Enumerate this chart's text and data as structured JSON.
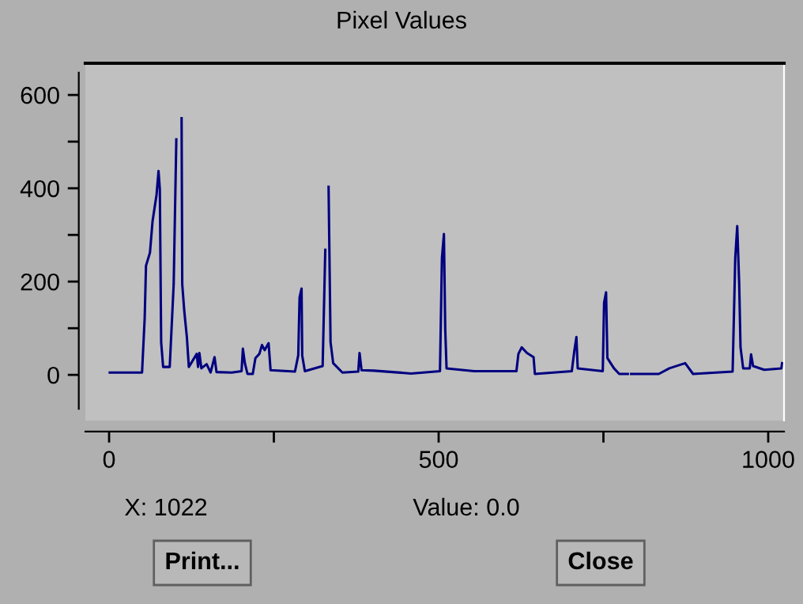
{
  "chart_data": {
    "type": "line",
    "title": "Pixel Values",
    "x": [
      1,
      50,
      54,
      56,
      62,
      66,
      72,
      75,
      77,
      79,
      82,
      92,
      98,
      102,
      104,
      108,
      110,
      111,
      114,
      118,
      121,
      133,
      135,
      137,
      140,
      148,
      154,
      160,
      163,
      186,
      201,
      203,
      206,
      210,
      218,
      222,
      228,
      232,
      236,
      242,
      245,
      282,
      287,
      289,
      292,
      293,
      297,
      324,
      328,
      330,
      332,
      333,
      336,
      340,
      354,
      378,
      380,
      383,
      402,
      458,
      502,
      505,
      508,
      510,
      512,
      554,
      618,
      621,
      626,
      634,
      644,
      646,
      702,
      706,
      709,
      711,
      749,
      751,
      754,
      756,
      766,
      774,
      787,
      788,
      791,
      792,
      834,
      850,
      874,
      886,
      946,
      950,
      953,
      956,
      958,
      962,
      972,
      974,
      977,
      994,
      1020,
      1021
    ],
    "series": [
      {
        "color": "#000080",
        "values": [
          5,
          5,
          121,
          234,
          262,
          330,
          386,
          437,
          398,
          70,
          17,
          17,
          194,
          505,
          null,
          null,
          550,
          194,
          138,
          81,
          17,
          45,
          17,
          47,
          14,
          23,
          5,
          38,
          6,
          5,
          8,
          56,
          25,
          2,
          2,
          36,
          45,
          64,
          53,
          68,
          10,
          7,
          42,
          166,
          185,
          42,
          8,
          19,
          268,
          null,
          null,
          403,
          70,
          25,
          5,
          7,
          47,
          10,
          9,
          3,
          8,
          251,
          302,
          98,
          14,
          8,
          8,
          45,
          59,
          47,
          38,
          2,
          8,
          53,
          81,
          14,
          8,
          155,
          177,
          36,
          14,
          2,
          2,
          null,
          null,
          2,
          2,
          14,
          25,
          2,
          7,
          251,
          319,
          194,
          59,
          14,
          14,
          44,
          19,
          11,
          14,
          25
        ]
      }
    ],
    "xlim": [
      -36,
      1024
    ],
    "ylim": [
      -98,
      668
    ],
    "xticks": [
      0,
      {
        "value": 250,
        "label": null
      },
      500,
      {
        "value": 750,
        "label": null
      },
      1000
    ],
    "yticks": [
      0,
      {
        "value": 100,
        "label": null
      },
      200,
      {
        "value": 300,
        "label": null
      },
      400,
      {
        "value": 500,
        "label": null
      },
      600
    ],
    "grid": false,
    "marker": "none",
    "line_style": "solid",
    "annotations": [
      "X: 1022",
      "Value: 0.0",
      "Print...",
      "Close"
    ]
  }
}
